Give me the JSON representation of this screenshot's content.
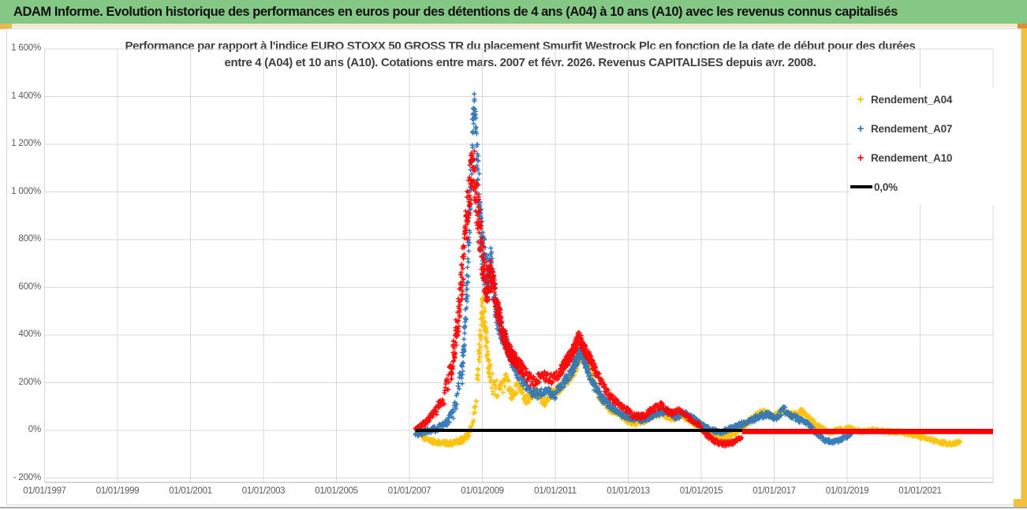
{
  "banner": {
    "title": "ADAM Informe. Evolution historique des performances en euros pour des détentions de 4 ans (A04) à 10 ans (A10) avec les revenus connus capitalisés"
  },
  "chart": {
    "title_line1": "Performance par rapport à l'indice EURO STOXX 50 GROSS TR  du placement Smurfit Westrock Plc en fonction de la date de début pour des durées",
    "title_line2": "entre 4 (A04) et 10 ans (A10).  Cotations entre mars. 2007 et févr. 2026.  Revenus CAPITALISES depuis avr. 2008."
  },
  "legend": {
    "items": [
      {
        "label": "Rendement_A04",
        "color": "#FFC000",
        "marker": "plus"
      },
      {
        "label": "Rendement_A07",
        "color": "#2E75B6",
        "marker": "plus"
      },
      {
        "label": "Rendement_A10",
        "color": "#FF0000",
        "marker": "plus"
      },
      {
        "label": "0,0%",
        "color": "#000000",
        "marker": "line"
      }
    ]
  },
  "chart_data": {
    "type": "scatter",
    "title": "Performance par rapport à l'indice EURO STOXX 50 GROSS TR du placement Smurfit Westrock Plc en fonction de la date de début pour des durées entre 4 (A04) et 10 ans (A10). Cotations entre mars. 2007 et févr. 2026. Revenus CAPITALISES depuis avr. 2008.",
    "x_axis": {
      "unit": "date de début (01/01/AAAA)",
      "range_years": [
        1997.0,
        2023.0
      ],
      "ticks": [
        {
          "label": "01/01/1997",
          "year": 1997
        },
        {
          "label": "01/01/1999",
          "year": 1999
        },
        {
          "label": "01/01/2001",
          "year": 2001
        },
        {
          "label": "01/01/2003",
          "year": 2003
        },
        {
          "label": "01/01/2005",
          "year": 2005
        },
        {
          "label": "01/01/2007",
          "year": 2007
        },
        {
          "label": "01/01/2009",
          "year": 2009
        },
        {
          "label": "01/01/2011",
          "year": 2011
        },
        {
          "label": "01/01/2013",
          "year": 2013
        },
        {
          "label": "01/01/2015",
          "year": 2015
        },
        {
          "label": "01/01/2017",
          "year": 2017
        },
        {
          "label": "01/01/2019",
          "year": 2019
        },
        {
          "label": "01/01/2021",
          "year": 2021
        },
        {
          "label": "",
          "year": 2023
        }
      ]
    },
    "y_axis": {
      "unit": "performance relative (%)",
      "range_pct": [
        -200,
        1600
      ],
      "grid": true,
      "ticks": [
        {
          "label": "1 600%",
          "value": 1600
        },
        {
          "label": "1 400%",
          "value": 1400
        },
        {
          "label": "1 200%",
          "value": 1200
        },
        {
          "label": "1 000%",
          "value": 1000
        },
        {
          "label": "800%",
          "value": 800
        },
        {
          "label": "600%",
          "value": 600
        },
        {
          "label": "400%",
          "value": 400
        },
        {
          "label": "200%",
          "value": 200
        },
        {
          "label": "0%",
          "value": 0
        },
        {
          "label": "- 200%",
          "value": -200
        }
      ]
    },
    "legend_position": "right-overlay",
    "series": [
      {
        "name": "Rendement_A04",
        "color": "#FFC000",
        "marker": "plus",
        "kind": "scatter",
        "keypoints": [
          [
            2007.17,
            -5,
            8
          ],
          [
            2007.4,
            -30,
            10
          ],
          [
            2007.7,
            -50,
            10
          ],
          [
            2008.1,
            -55,
            10
          ],
          [
            2008.45,
            -40,
            12
          ],
          [
            2008.65,
            -15,
            15
          ],
          [
            2008.8,
            80,
            40
          ],
          [
            2008.92,
            330,
            60
          ],
          [
            2009.0,
            530,
            50
          ],
          [
            2009.08,
            430,
            60
          ],
          [
            2009.15,
            300,
            50
          ],
          [
            2009.3,
            180,
            40
          ],
          [
            2009.5,
            170,
            35
          ],
          [
            2009.65,
            215,
            30
          ],
          [
            2009.8,
            150,
            25
          ],
          [
            2010.0,
            195,
            25
          ],
          [
            2010.2,
            130,
            22
          ],
          [
            2010.45,
            165,
            22
          ],
          [
            2010.7,
            120,
            20
          ],
          [
            2010.9,
            155,
            20
          ],
          [
            2011.1,
            175,
            20
          ],
          [
            2011.35,
            215,
            22
          ],
          [
            2011.55,
            265,
            25
          ],
          [
            2011.7,
            320,
            25
          ],
          [
            2011.85,
            280,
            22
          ],
          [
            2012.0,
            235,
            20
          ],
          [
            2012.2,
            150,
            20
          ],
          [
            2012.45,
            95,
            16
          ],
          [
            2012.7,
            70,
            14
          ],
          [
            2012.95,
            45,
            12
          ],
          [
            2013.2,
            25,
            10
          ],
          [
            2013.45,
            40,
            10
          ],
          [
            2013.7,
            65,
            12
          ],
          [
            2013.95,
            70,
            12
          ],
          [
            2014.2,
            48,
            10
          ],
          [
            2014.45,
            65,
            10
          ],
          [
            2014.7,
            42,
            10
          ],
          [
            2014.95,
            12,
            10
          ],
          [
            2015.2,
            -18,
            10
          ],
          [
            2015.45,
            -30,
            10
          ],
          [
            2015.7,
            -28,
            10
          ],
          [
            2015.95,
            -8,
            10
          ],
          [
            2016.2,
            25,
            12
          ],
          [
            2016.5,
            60,
            14
          ],
          [
            2016.75,
            75,
            14
          ],
          [
            2017.0,
            58,
            14
          ],
          [
            2017.25,
            85,
            16
          ],
          [
            2017.5,
            62,
            13
          ],
          [
            2017.75,
            78,
            13
          ],
          [
            2018.0,
            45,
            12
          ],
          [
            2018.25,
            12,
            10
          ],
          [
            2018.5,
            -8,
            8
          ],
          [
            2018.8,
            2,
            8
          ],
          [
            2019.1,
            8,
            8
          ],
          [
            2019.4,
            -6,
            7
          ],
          [
            2019.7,
            2,
            7
          ],
          [
            2020.0,
            -4,
            7
          ],
          [
            2020.4,
            -8,
            7
          ],
          [
            2020.8,
            -18,
            7
          ],
          [
            2021.2,
            -35,
            8
          ],
          [
            2021.6,
            -52,
            8
          ],
          [
            2021.9,
            -58,
            8
          ],
          [
            2022.1,
            -45,
            8
          ]
        ]
      },
      {
        "name": "Rendement_A07",
        "color": "#2E75B6",
        "marker": "plus",
        "kind": "scatter",
        "keypoints": [
          [
            2007.17,
            -15,
            12
          ],
          [
            2007.45,
            -5,
            12
          ],
          [
            2007.8,
            10,
            14
          ],
          [
            2008.05,
            35,
            15
          ],
          [
            2008.25,
            90,
            30
          ],
          [
            2008.45,
            260,
            60
          ],
          [
            2008.6,
            650,
            90
          ],
          [
            2008.7,
            1120,
            120
          ],
          [
            2008.78,
            1380,
            40
          ],
          [
            2008.85,
            1180,
            90
          ],
          [
            2008.95,
            860,
            110
          ],
          [
            2009.05,
            700,
            110
          ],
          [
            2009.15,
            640,
            90
          ],
          [
            2009.25,
            700,
            80
          ],
          [
            2009.35,
            520,
            70
          ],
          [
            2009.5,
            430,
            50
          ],
          [
            2009.65,
            370,
            40
          ],
          [
            2009.8,
            300,
            30
          ],
          [
            2010.0,
            235,
            28
          ],
          [
            2010.25,
            175,
            24
          ],
          [
            2010.5,
            150,
            22
          ],
          [
            2010.75,
            165,
            20
          ],
          [
            2011.0,
            150,
            20
          ],
          [
            2011.2,
            195,
            22
          ],
          [
            2011.4,
            235,
            24
          ],
          [
            2011.6,
            300,
            26
          ],
          [
            2011.72,
            335,
            24
          ],
          [
            2011.85,
            270,
            22
          ],
          [
            2012.05,
            190,
            20
          ],
          [
            2012.3,
            130,
            18
          ],
          [
            2012.55,
            95,
            15
          ],
          [
            2012.8,
            70,
            13
          ],
          [
            2013.05,
            55,
            12
          ],
          [
            2013.3,
            42,
            11
          ],
          [
            2013.55,
            50,
            11
          ],
          [
            2013.8,
            72,
            12
          ],
          [
            2014.05,
            82,
            12
          ],
          [
            2014.3,
            55,
            11
          ],
          [
            2014.55,
            72,
            11
          ],
          [
            2014.8,
            48,
            10
          ],
          [
            2015.05,
            18,
            10
          ],
          [
            2015.3,
            0,
            9
          ],
          [
            2015.55,
            -8,
            9
          ],
          [
            2015.8,
            8,
            9
          ],
          [
            2016.05,
            22,
            10
          ],
          [
            2016.35,
            42,
            12
          ],
          [
            2016.6,
            58,
            13
          ],
          [
            2016.85,
            68,
            13
          ],
          [
            2017.05,
            52,
            13
          ],
          [
            2017.25,
            88,
            16
          ],
          [
            2017.45,
            60,
            13
          ],
          [
            2017.7,
            45,
            12
          ],
          [
            2017.95,
            22,
            10
          ],
          [
            2018.15,
            -12,
            10
          ],
          [
            2018.4,
            -42,
            10
          ],
          [
            2018.65,
            -48,
            9
          ],
          [
            2018.9,
            -32,
            9
          ],
          [
            2019.1,
            -18,
            8
          ]
        ]
      },
      {
        "name": "Rendement_A10",
        "color": "#FF0000",
        "marker": "plus",
        "kind": "scatter",
        "flat_zero_segment_years": [
          2016.12,
          2023.0
        ],
        "keypoints": [
          [
            2007.17,
            2,
            8
          ],
          [
            2007.45,
            35,
            12
          ],
          [
            2007.7,
            75,
            18
          ],
          [
            2007.95,
            140,
            30
          ],
          [
            2008.15,
            260,
            50
          ],
          [
            2008.35,
            480,
            80
          ],
          [
            2008.5,
            740,
            100
          ],
          [
            2008.65,
            1020,
            110
          ],
          [
            2008.75,
            1130,
            90
          ],
          [
            2008.85,
            950,
            110
          ],
          [
            2008.95,
            800,
            100
          ],
          [
            2009.05,
            660,
            90
          ],
          [
            2009.15,
            600,
            80
          ],
          [
            2009.25,
            660,
            70
          ],
          [
            2009.4,
            520,
            60
          ],
          [
            2009.55,
            420,
            45
          ],
          [
            2009.7,
            340,
            35
          ],
          [
            2009.9,
            295,
            30
          ],
          [
            2010.1,
            255,
            28
          ],
          [
            2010.35,
            205,
            25
          ],
          [
            2010.6,
            230,
            24
          ],
          [
            2010.85,
            215,
            22
          ],
          [
            2011.05,
            230,
            22
          ],
          [
            2011.25,
            275,
            24
          ],
          [
            2011.45,
            320,
            26
          ],
          [
            2011.65,
            390,
            26
          ],
          [
            2011.8,
            345,
            24
          ],
          [
            2011.95,
            300,
            22
          ],
          [
            2012.15,
            235,
            20
          ],
          [
            2012.4,
            165,
            18
          ],
          [
            2012.65,
            120,
            15
          ],
          [
            2012.9,
            92,
            13
          ],
          [
            2013.15,
            62,
            12
          ],
          [
            2013.4,
            58,
            11
          ],
          [
            2013.65,
            88,
            12
          ],
          [
            2013.9,
            105,
            13
          ],
          [
            2014.15,
            70,
            11
          ],
          [
            2014.4,
            88,
            11
          ],
          [
            2014.65,
            52,
            10
          ],
          [
            2014.9,
            28,
            10
          ],
          [
            2015.1,
            -12,
            10
          ],
          [
            2015.35,
            -45,
            10
          ],
          [
            2015.6,
            -58,
            10
          ],
          [
            2015.85,
            -52,
            10
          ],
          [
            2016.0,
            -38,
            9
          ],
          [
            2016.1,
            -28,
            8
          ]
        ]
      },
      {
        "name": "0,0%",
        "color": "#000000",
        "kind": "line",
        "y": 0,
        "x_range_years": [
          2007.17,
          2023.0
        ]
      }
    ]
  }
}
